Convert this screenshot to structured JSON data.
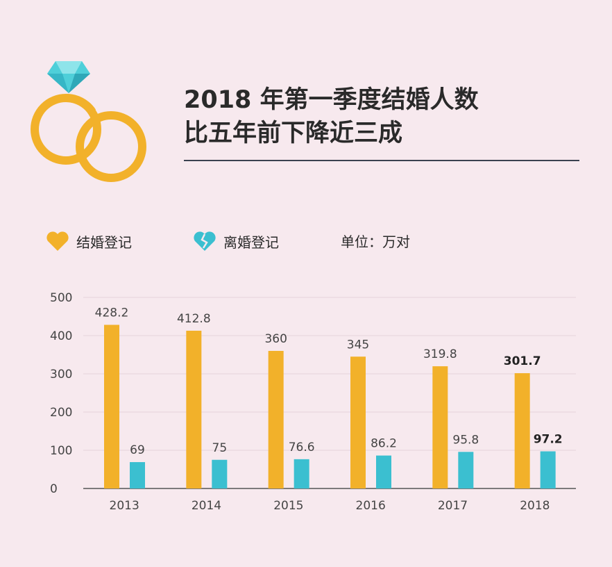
{
  "title": {
    "line1": "2018 年第一季度结婚人数",
    "line2": "比五年前下降近三成"
  },
  "legend": {
    "marriage": "结婚登记",
    "divorce": "离婚登记",
    "unit": "单位：万对"
  },
  "colors": {
    "background": "#f7e9ee",
    "marriage": "#f2b12a",
    "divorce": "#3bbfd0",
    "ring": "#f2b12a",
    "diamond": "#4ecfd9"
  },
  "icons": {
    "rings": "wedding-rings-icon",
    "marriage": "heart-icon",
    "divorce": "broken-heart-icon"
  },
  "chart_data": {
    "type": "bar",
    "categories": [
      "2013",
      "2014",
      "2015",
      "2016",
      "2017",
      "2018"
    ],
    "series": [
      {
        "name": "结婚登记",
        "values": [
          428.2,
          412.8,
          360,
          345,
          319.8,
          301.7
        ],
        "labels": [
          "428.2",
          "412.8",
          "360",
          "345",
          "319.8",
          "301.7"
        ]
      },
      {
        "name": "离婚登记",
        "values": [
          69,
          75,
          76.6,
          86.2,
          95.8,
          97.2
        ],
        "labels": [
          "69",
          "75",
          "76.6",
          "86.2",
          "95.8",
          "97.2"
        ]
      }
    ],
    "highlight_last": true,
    "yticks": [
      "0",
      "100",
      "200",
      "300",
      "400",
      "500"
    ],
    "ylim": [
      0,
      500
    ],
    "grid": true,
    "legend_position": "top-left"
  }
}
